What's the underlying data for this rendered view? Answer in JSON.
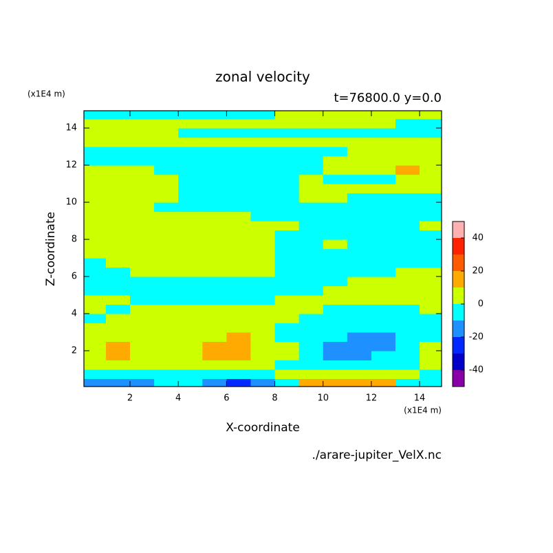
{
  "chart_data": {
    "type": "contour",
    "title": "zonal velocity",
    "subtitle": "t=76800.0 y=0.0",
    "x_label": "X-coordinate",
    "y_label": "Z-coordinate",
    "x_unit": "(x1E4 m)",
    "y_unit": "(x1E4 m)",
    "source": "./arare-jupiter_VelX.nc",
    "xlim": [
      0.09,
      14.91
    ],
    "ylim": [
      0.07,
      14.93
    ],
    "xticks": [
      2,
      4,
      6,
      8,
      10,
      12,
      14
    ],
    "yticks": [
      2,
      4,
      6,
      8,
      10,
      12,
      14
    ],
    "levels": [
      -50,
      -40,
      -30,
      -20,
      -10,
      0,
      10,
      20,
      30,
      40,
      50
    ],
    "colors": [
      "#8a00a8",
      "#0000c8",
      "#0028ff",
      "#1e90ff",
      "#00ffff",
      "#ccff00",
      "#ffaa00",
      "#ff5a00",
      "#ff2200",
      "#ffb0b0"
    ],
    "colorbar_ticks": [
      -40,
      -20,
      0,
      20,
      40
    ],
    "x": [
      0.5,
      1.5,
      2.5,
      3.5,
      4.5,
      5.5,
      6.5,
      7.5,
      8.5,
      9.5,
      10.5,
      11.5,
      12.5,
      13.5,
      14.5
    ],
    "y": [
      0.25,
      0.75,
      1.25,
      1.75,
      2.25,
      2.75,
      3.25,
      3.75,
      4.25,
      4.75,
      5.25,
      5.75,
      6.25,
      6.75,
      7.25,
      7.75,
      8.25,
      8.75,
      9.25,
      9.75,
      10.25,
      10.75,
      11.25,
      11.75,
      12.25,
      12.75,
      13.25,
      13.75,
      14.25,
      14.75
    ],
    "z": [
      [
        -15,
        -15,
        -15,
        -5,
        -5,
        -15,
        -25,
        -15,
        -5,
        15,
        15,
        15,
        15,
        -5,
        -5
      ],
      [
        -5,
        -5,
        -5,
        -5,
        -5,
        -5,
        -5,
        -5,
        5,
        5,
        5,
        5,
        5,
        5,
        -5
      ],
      [
        5,
        5,
        5,
        5,
        5,
        5,
        5,
        5,
        -5,
        -5,
        -5,
        -5,
        -5,
        -5,
        5
      ],
      [
        5,
        15,
        5,
        5,
        5,
        15,
        15,
        5,
        5,
        -5,
        -15,
        -15,
        -5,
        -5,
        5
      ],
      [
        5,
        15,
        5,
        5,
        5,
        15,
        15,
        5,
        5,
        -5,
        -15,
        -15,
        -15,
        -5,
        5
      ],
      [
        5,
        5,
        5,
        5,
        5,
        5,
        15,
        5,
        -5,
        -5,
        -5,
        -15,
        -15,
        -5,
        -5
      ],
      [
        5,
        5,
        5,
        5,
        5,
        5,
        5,
        5,
        -5,
        -5,
        -5,
        -5,
        -5,
        -5,
        -5
      ],
      [
        -5,
        5,
        5,
        5,
        5,
        5,
        5,
        5,
        5,
        -5,
        -5,
        -5,
        -5,
        -5,
        -5
      ],
      [
        5,
        -5,
        5,
        5,
        5,
        5,
        5,
        5,
        5,
        5,
        -5,
        -5,
        -5,
        -5,
        5
      ],
      [
        5,
        5,
        -5,
        -5,
        -5,
        -5,
        -5,
        -5,
        5,
        5,
        5,
        5,
        5,
        5,
        5
      ],
      [
        -5,
        -5,
        -5,
        -5,
        -5,
        -5,
        -5,
        -5,
        -5,
        -5,
        5,
        5,
        5,
        5,
        5
      ],
      [
        -5,
        -5,
        -5,
        -5,
        -5,
        -5,
        -5,
        -5,
        -5,
        -5,
        -5,
        5,
        5,
        5,
        5
      ],
      [
        -5,
        -5,
        5,
        5,
        5,
        5,
        5,
        5,
        -5,
        -5,
        -5,
        -5,
        -5,
        5,
        5
      ],
      [
        -5,
        5,
        5,
        5,
        5,
        5,
        5,
        5,
        -5,
        -5,
        -5,
        -5,
        -5,
        -5,
        -5
      ],
      [
        5,
        5,
        5,
        5,
        5,
        5,
        5,
        5,
        -5,
        -5,
        -5,
        -5,
        -5,
        -5,
        -5
      ],
      [
        5,
        5,
        5,
        5,
        5,
        5,
        5,
        5,
        -5,
        -5,
        5,
        -5,
        -5,
        -5,
        -5
      ],
      [
        5,
        5,
        5,
        5,
        5,
        5,
        5,
        5,
        -5,
        -5,
        -5,
        -5,
        -5,
        -5,
        -5
      ],
      [
        5,
        5,
        5,
        5,
        5,
        5,
        5,
        5,
        5,
        -5,
        -5,
        -5,
        -5,
        -5,
        5
      ],
      [
        5,
        5,
        5,
        5,
        5,
        5,
        5,
        -5,
        -5,
        -5,
        -5,
        -5,
        -5,
        -5,
        -5
      ],
      [
        5,
        5,
        5,
        -5,
        -5,
        -5,
        -5,
        -5,
        -5,
        -5,
        -5,
        -5,
        -5,
        -5,
        -5
      ],
      [
        5,
        5,
        5,
        5,
        -5,
        -5,
        -5,
        -5,
        -5,
        5,
        5,
        -5,
        -5,
        -5,
        -5
      ],
      [
        5,
        5,
        5,
        5,
        -5,
        -5,
        -5,
        -5,
        -5,
        5,
        5,
        5,
        5,
        5,
        5
      ],
      [
        5,
        5,
        5,
        5,
        -5,
        -5,
        -5,
        -5,
        -5,
        5,
        -5,
        -5,
        -5,
        5,
        5
      ],
      [
        5,
        5,
        5,
        -5,
        -5,
        -5,
        -5,
        -5,
        -5,
        -5,
        5,
        5,
        5,
        15,
        5
      ],
      [
        -5,
        -5,
        -5,
        -5,
        -5,
        -5,
        -5,
        -5,
        -5,
        -5,
        5,
        5,
        5,
        5,
        5
      ],
      [
        -5,
        -5,
        -5,
        -5,
        -5,
        -5,
        -5,
        -5,
        -5,
        -5,
        -5,
        5,
        5,
        5,
        5
      ],
      [
        5,
        5,
        5,
        5,
        5,
        5,
        5,
        5,
        5,
        5,
        5,
        5,
        5,
        5,
        5
      ],
      [
        5,
        5,
        5,
        5,
        -5,
        -5,
        -5,
        -5,
        -5,
        -5,
        -5,
        -5,
        -5,
        -5,
        -5
      ],
      [
        5,
        5,
        5,
        5,
        5,
        5,
        5,
        5,
        5,
        5,
        5,
        5,
        5,
        -5,
        -5
      ],
      [
        -5,
        -5,
        -5,
        -5,
        -5,
        -5,
        -5,
        -5,
        5,
        5,
        5,
        5,
        5,
        5,
        5
      ]
    ]
  }
}
